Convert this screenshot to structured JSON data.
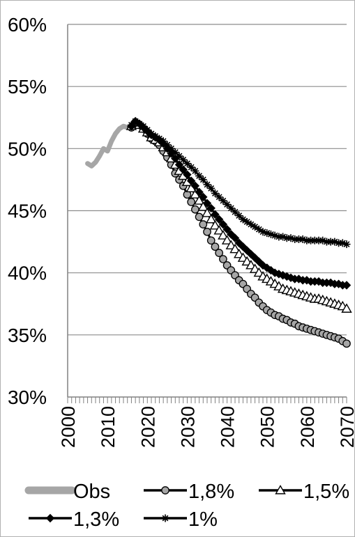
{
  "chart_data": {
    "type": "line",
    "title": "",
    "xlabel": "",
    "ylabel": "",
    "xlim": [
      2000,
      2070
    ],
    "ylim": [
      30,
      60
    ],
    "y_ticks": [
      "30%",
      "35%",
      "40%",
      "45%",
      "50%",
      "55%",
      "60%"
    ],
    "x_ticks": [
      "2000",
      "2010",
      "2020",
      "2030",
      "2040",
      "2050",
      "2060",
      "2070"
    ],
    "grid": "horizontal",
    "legend_position": "bottom",
    "series": [
      {
        "name": "Obs",
        "color": "#a6a6a6",
        "marker": "none",
        "x": [
          2005,
          2006,
          2007,
          2008,
          2009,
          2010,
          2011,
          2012,
          2013,
          2014,
          2015
        ],
        "y": [
          48.8,
          48.6,
          48.9,
          49.4,
          50.0,
          49.8,
          50.6,
          51.2,
          51.6,
          51.8,
          51.7
        ]
      },
      {
        "name": "1,8%",
        "color": "#000000",
        "marker": "circle",
        "x": [
          2016,
          2017,
          2018,
          2019,
          2020,
          2021,
          2022,
          2023,
          2024,
          2025,
          2026,
          2027,
          2028,
          2029,
          2030,
          2031,
          2032,
          2033,
          2034,
          2035,
          2036,
          2037,
          2038,
          2039,
          2040,
          2041,
          2042,
          2043,
          2044,
          2045,
          2046,
          2047,
          2048,
          2049,
          2050,
          2051,
          2052,
          2053,
          2054,
          2055,
          2056,
          2057,
          2058,
          2059,
          2060,
          2061,
          2062,
          2063,
          2064,
          2065,
          2066,
          2067,
          2068,
          2069,
          2070
        ],
        "y": [
          51.7,
          52.1,
          51.9,
          51.6,
          51.2,
          50.8,
          50.6,
          50.3,
          49.8,
          49.3,
          48.7,
          48.0,
          47.5,
          47.0,
          46.3,
          45.7,
          45.1,
          44.5,
          43.9,
          43.3,
          42.6,
          42.1,
          41.6,
          41.1,
          40.6,
          40.2,
          39.8,
          39.4,
          39.1,
          38.7,
          38.3,
          38.0,
          37.6,
          37.3,
          37.0,
          36.8,
          36.6,
          36.5,
          36.3,
          36.2,
          36.0,
          35.9,
          35.7,
          35.6,
          35.5,
          35.4,
          35.3,
          35.2,
          35.1,
          35.0,
          34.9,
          34.8,
          34.7,
          34.5,
          34.3
        ]
      },
      {
        "name": "1,5%",
        "color": "#000000",
        "marker": "triangle",
        "x": [
          2016,
          2017,
          2018,
          2019,
          2020,
          2021,
          2022,
          2023,
          2024,
          2025,
          2026,
          2027,
          2028,
          2029,
          2030,
          2031,
          2032,
          2033,
          2034,
          2035,
          2036,
          2037,
          2038,
          2039,
          2040,
          2041,
          2042,
          2043,
          2044,
          2045,
          2046,
          2047,
          2048,
          2049,
          2050,
          2051,
          2052,
          2053,
          2054,
          2055,
          2056,
          2057,
          2058,
          2059,
          2060,
          2061,
          2062,
          2063,
          2064,
          2065,
          2066,
          2067,
          2068,
          2069,
          2070
        ],
        "y": [
          51.8,
          52.1,
          51.9,
          51.6,
          51.3,
          50.9,
          50.7,
          50.5,
          50.1,
          49.7,
          49.2,
          48.7,
          48.2,
          47.8,
          47.3,
          46.8,
          46.3,
          45.8,
          45.3,
          44.8,
          44.3,
          43.8,
          43.4,
          43.0,
          42.6,
          42.2,
          41.9,
          41.5,
          41.2,
          40.9,
          40.6,
          40.3,
          40.0,
          39.7,
          39.5,
          39.3,
          39.1,
          38.9,
          38.7,
          38.6,
          38.5,
          38.4,
          38.3,
          38.2,
          38.1,
          38.0,
          37.9,
          37.9,
          37.8,
          37.7,
          37.6,
          37.5,
          37.4,
          37.3,
          37.1
        ]
      },
      {
        "name": "1,3%",
        "color": "#000000",
        "marker": "diamond",
        "x": [
          2016,
          2017,
          2018,
          2019,
          2020,
          2021,
          2022,
          2023,
          2024,
          2025,
          2026,
          2027,
          2028,
          2029,
          2030,
          2031,
          2032,
          2033,
          2034,
          2035,
          2036,
          2037,
          2038,
          2039,
          2040,
          2041,
          2042,
          2043,
          2044,
          2045,
          2046,
          2047,
          2048,
          2049,
          2050,
          2051,
          2052,
          2053,
          2054,
          2055,
          2056,
          2057,
          2058,
          2059,
          2060,
          2061,
          2062,
          2063,
          2064,
          2065,
          2066,
          2067,
          2068,
          2069,
          2070
        ],
        "y": [
          51.8,
          52.2,
          52.0,
          51.7,
          51.4,
          51.1,
          50.9,
          50.7,
          50.4,
          50.0,
          49.6,
          49.2,
          48.7,
          48.3,
          47.9,
          47.4,
          47.0,
          46.5,
          46.1,
          45.6,
          45.2,
          44.7,
          44.3,
          43.9,
          43.5,
          43.1,
          42.8,
          42.4,
          42.1,
          41.8,
          41.5,
          41.2,
          40.9,
          40.6,
          40.4,
          40.2,
          40.0,
          39.9,
          39.8,
          39.7,
          39.6,
          39.5,
          39.5,
          39.4,
          39.4,
          39.3,
          39.3,
          39.3,
          39.2,
          39.2,
          39.2,
          39.1,
          39.1,
          39.0,
          39.0
        ]
      },
      {
        "name": "1%",
        "color": "#000000",
        "marker": "star",
        "x": [
          2016,
          2017,
          2018,
          2019,
          2020,
          2021,
          2022,
          2023,
          2024,
          2025,
          2026,
          2027,
          2028,
          2029,
          2030,
          2031,
          2032,
          2033,
          2034,
          2035,
          2036,
          2037,
          2038,
          2039,
          2040,
          2041,
          2042,
          2043,
          2044,
          2045,
          2046,
          2047,
          2048,
          2049,
          2050,
          2051,
          2052,
          2053,
          2054,
          2055,
          2056,
          2057,
          2058,
          2059,
          2060,
          2061,
          2062,
          2063,
          2064,
          2065,
          2066,
          2067,
          2068,
          2069,
          2070
        ],
        "y": [
          51.9,
          52.2,
          52.0,
          51.8,
          51.5,
          51.2,
          51.0,
          50.8,
          50.6,
          50.3,
          50.0,
          49.7,
          49.4,
          49.1,
          48.8,
          48.5,
          48.2,
          47.8,
          47.5,
          47.1,
          46.8,
          46.4,
          46.1,
          45.8,
          45.5,
          45.2,
          44.9,
          44.6,
          44.3,
          44.1,
          43.9,
          43.7,
          43.5,
          43.3,
          43.2,
          43.1,
          43.0,
          42.9,
          42.9,
          42.8,
          42.8,
          42.7,
          42.7,
          42.7,
          42.6,
          42.6,
          42.6,
          42.6,
          42.6,
          42.5,
          42.5,
          42.5,
          42.4,
          42.4,
          42.3
        ]
      }
    ]
  }
}
